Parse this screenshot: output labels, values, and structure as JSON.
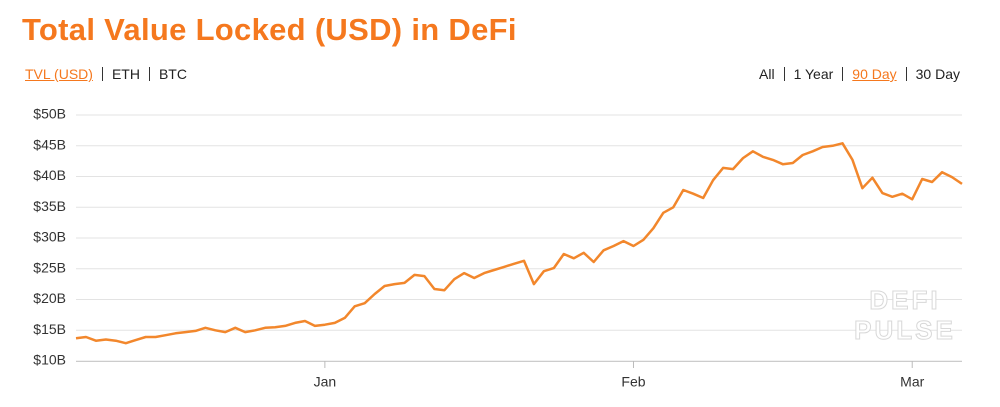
{
  "controls": {
    "metrics": [
      "TVL (USD)",
      "ETH",
      "BTC"
    ],
    "active_metric": 0,
    "ranges": [
      "All",
      "1 Year",
      "90 Day",
      "30 Day"
    ],
    "active_range": 2
  },
  "chart_data": {
    "type": "line",
    "title": "Total Value Locked (USD) in DeFi",
    "watermark": [
      "DEFI",
      "PULSE"
    ],
    "categories": [
      null,
      null,
      null,
      null,
      null,
      null,
      null,
      null,
      null,
      null,
      null,
      null,
      null,
      null,
      null,
      null,
      null,
      null,
      null,
      null,
      null,
      null,
      null,
      null,
      null,
      "Jan",
      null,
      null,
      null,
      null,
      null,
      null,
      null,
      null,
      null,
      null,
      null,
      null,
      null,
      null,
      null,
      null,
      null,
      null,
      null,
      null,
      null,
      null,
      null,
      null,
      null,
      null,
      null,
      null,
      null,
      null,
      "Feb",
      null,
      null,
      null,
      null,
      null,
      null,
      null,
      null,
      null,
      null,
      null,
      null,
      null,
      null,
      null,
      null,
      null,
      null,
      null,
      null,
      null,
      null,
      null,
      null,
      null,
      null,
      null,
      "Mar",
      null,
      null,
      null,
      null,
      null
    ],
    "series": [
      {
        "name": "TVL (USD)",
        "color": "#f2872c",
        "values": [
          13.7,
          13.9,
          13.3,
          13.5,
          13.3,
          12.9,
          13.4,
          13.9,
          13.9,
          14.2,
          14.5,
          14.7,
          14.9,
          15.4,
          15.0,
          14.7,
          15.4,
          14.7,
          15.0,
          15.4,
          15.5,
          15.7,
          16.2,
          16.5,
          15.7,
          15.9,
          16.2,
          17.0,
          18.9,
          19.4,
          20.9,
          22.2,
          22.5,
          22.7,
          24.0,
          23.8,
          21.7,
          21.5,
          23.3,
          24.3,
          23.5,
          24.3,
          24.8,
          25.3,
          25.8,
          26.3,
          22.5,
          24.6,
          25.1,
          27.4,
          26.7,
          27.6,
          26.1,
          28.0,
          28.7,
          29.5,
          28.7,
          29.7,
          31.6,
          34.1,
          35.0,
          37.8,
          37.2,
          36.5,
          39.4,
          41.4,
          41.2,
          43.0,
          44.1,
          43.2,
          42.7,
          42.0,
          42.2,
          43.5,
          44.1,
          44.8,
          45.0,
          45.4,
          42.7,
          38.1,
          39.8,
          37.3,
          36.7,
          37.2,
          36.3,
          39.6,
          39.1,
          40.7,
          39.9,
          38.8
        ]
      }
    ],
    "ylim": [
      10,
      50
    ],
    "yticks": [
      {
        "value": 10,
        "label": "$10B"
      },
      {
        "value": 15,
        "label": "$15B"
      },
      {
        "value": 20,
        "label": "$20B"
      },
      {
        "value": 25,
        "label": "$25B"
      },
      {
        "value": 30,
        "label": "$30B"
      },
      {
        "value": 35,
        "label": "$35B"
      },
      {
        "value": 40,
        "label": "$40B"
      },
      {
        "value": 45,
        "label": "$45B"
      },
      {
        "value": 50,
        "label": "$50B"
      }
    ],
    "grid": true
  }
}
